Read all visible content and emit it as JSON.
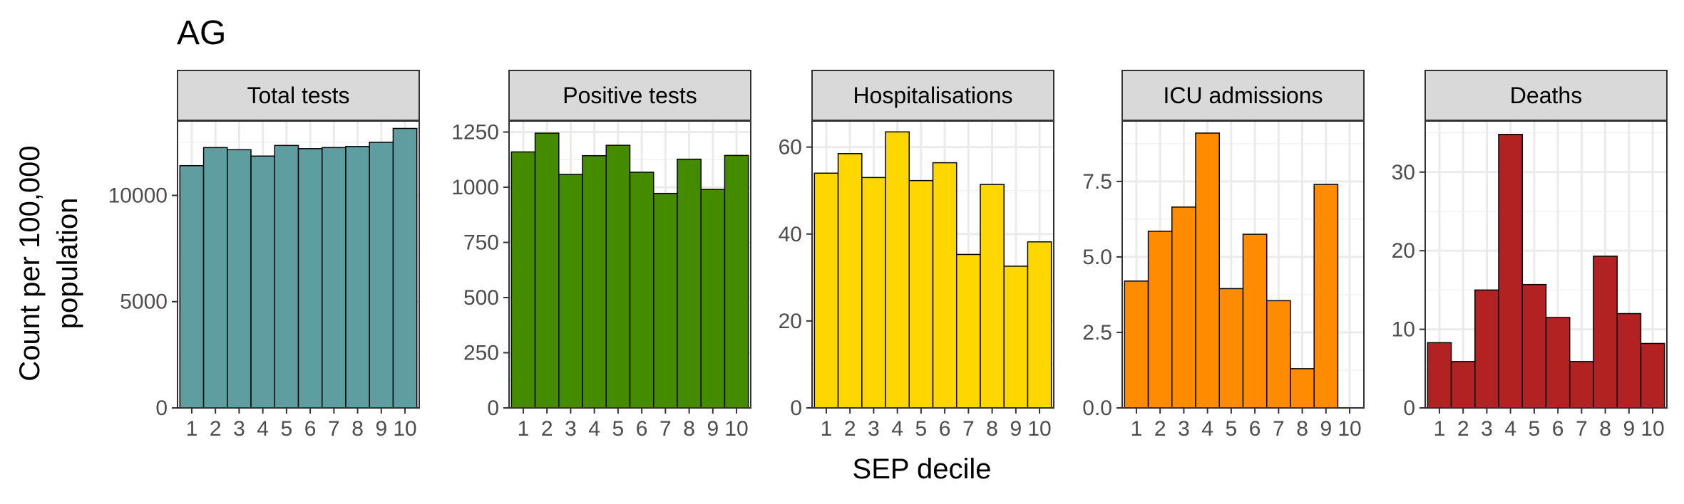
{
  "chart_data": {
    "type": "bar",
    "title": "AG",
    "xlabel": "SEP decile",
    "ylabel_lines": [
      "Count per 100,000",
      "population"
    ],
    "categories": [
      "1",
      "2",
      "3",
      "4",
      "5",
      "6",
      "7",
      "8",
      "9",
      "10"
    ],
    "legend": "none",
    "grid": true,
    "facets": [
      {
        "name": "Total tests",
        "color": "#5f9ea0",
        "ylim": [
          0,
          13500
        ],
        "yticks": [
          0,
          5000,
          10000
        ],
        "ytick_labels": [
          "0",
          "5000",
          "10000"
        ],
        "values": [
          11400,
          12250,
          12150,
          11850,
          12350,
          12200,
          12250,
          12300,
          12500,
          13150
        ]
      },
      {
        "name": "Positive tests",
        "color": "#458b00",
        "ylim": [
          0,
          1300
        ],
        "yticks": [
          0,
          250,
          500,
          750,
          1000,
          1250
        ],
        "ytick_labels": [
          "0",
          "250",
          "500",
          "750",
          "1000",
          "1250"
        ],
        "values": [
          1160,
          1245,
          1058,
          1143,
          1190,
          1068,
          972,
          1127,
          990,
          1144
        ]
      },
      {
        "name": "Hospitalisations",
        "color": "#ffd700",
        "ylim": [
          0,
          66
        ],
        "yticks": [
          0,
          20,
          40,
          60
        ],
        "ytick_labels": [
          "0",
          "20",
          "40",
          "60"
        ],
        "values": [
          54,
          58.5,
          53,
          63.5,
          52.3,
          56.4,
          35.3,
          51.4,
          32.6,
          38.2
        ]
      },
      {
        "name": "ICU admissions",
        "color": "#ff8c00",
        "ylim": [
          0,
          9.5
        ],
        "yticks": [
          0,
          2.5,
          5,
          7.5
        ],
        "ytick_labels": [
          "0.0",
          "2.5",
          "5.0",
          "7.5"
        ],
        "values": [
          4.2,
          5.85,
          6.65,
          9.1,
          3.95,
          5.75,
          3.55,
          1.3,
          7.4,
          null
        ]
      },
      {
        "name": "Deaths",
        "color": "#b22222",
        "ylim": [
          0,
          36.5
        ],
        "yticks": [
          0,
          10,
          20,
          30
        ],
        "ytick_labels": [
          "0",
          "10",
          "20",
          "30"
        ],
        "values": [
          8.3,
          5.9,
          15,
          34.8,
          15.7,
          11.5,
          5.9,
          19.3,
          12,
          8.2
        ]
      }
    ]
  }
}
